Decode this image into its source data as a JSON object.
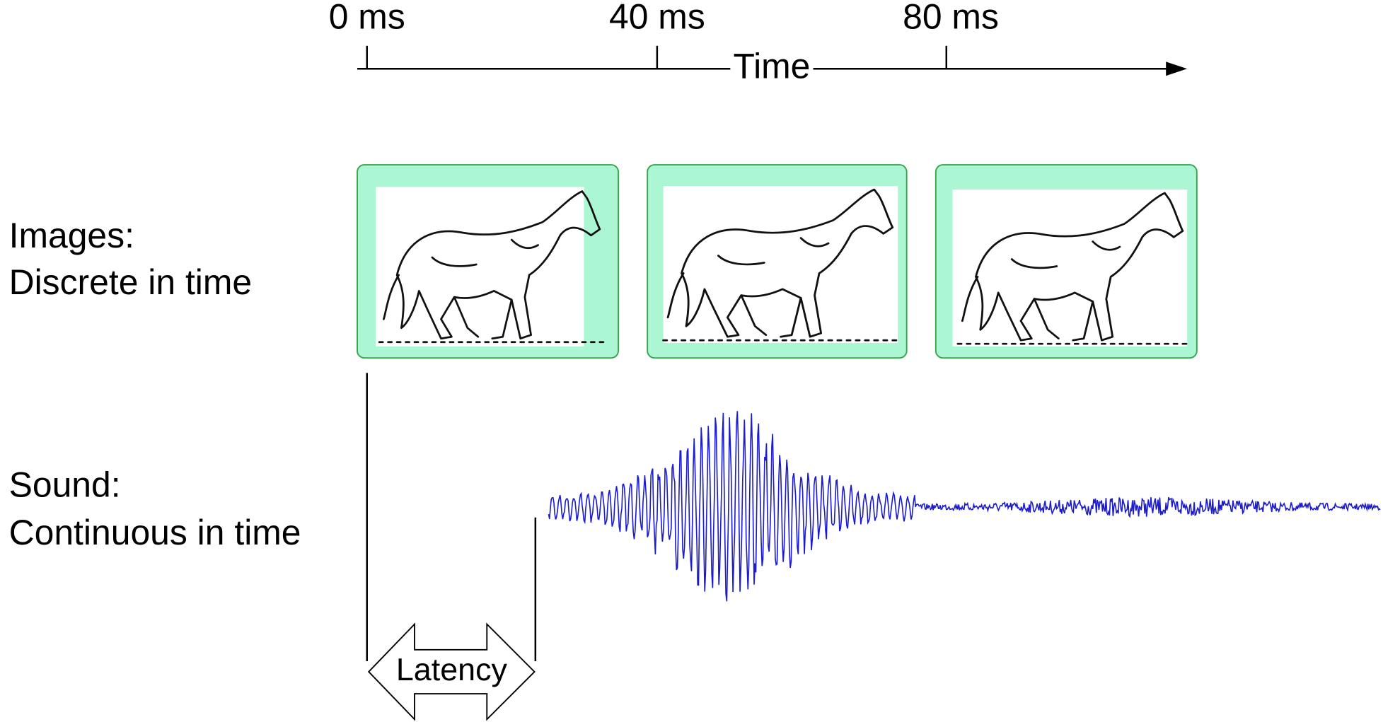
{
  "timeline": {
    "ticks": [
      "0 ms",
      "40 ms",
      "80 ms"
    ],
    "label": "Time"
  },
  "rows": [
    {
      "lines": [
        "Images:",
        "Discrete in time"
      ]
    },
    {
      "lines": [
        "Sound:",
        "Continuous in time"
      ]
    }
  ],
  "latency": "Latency"
}
